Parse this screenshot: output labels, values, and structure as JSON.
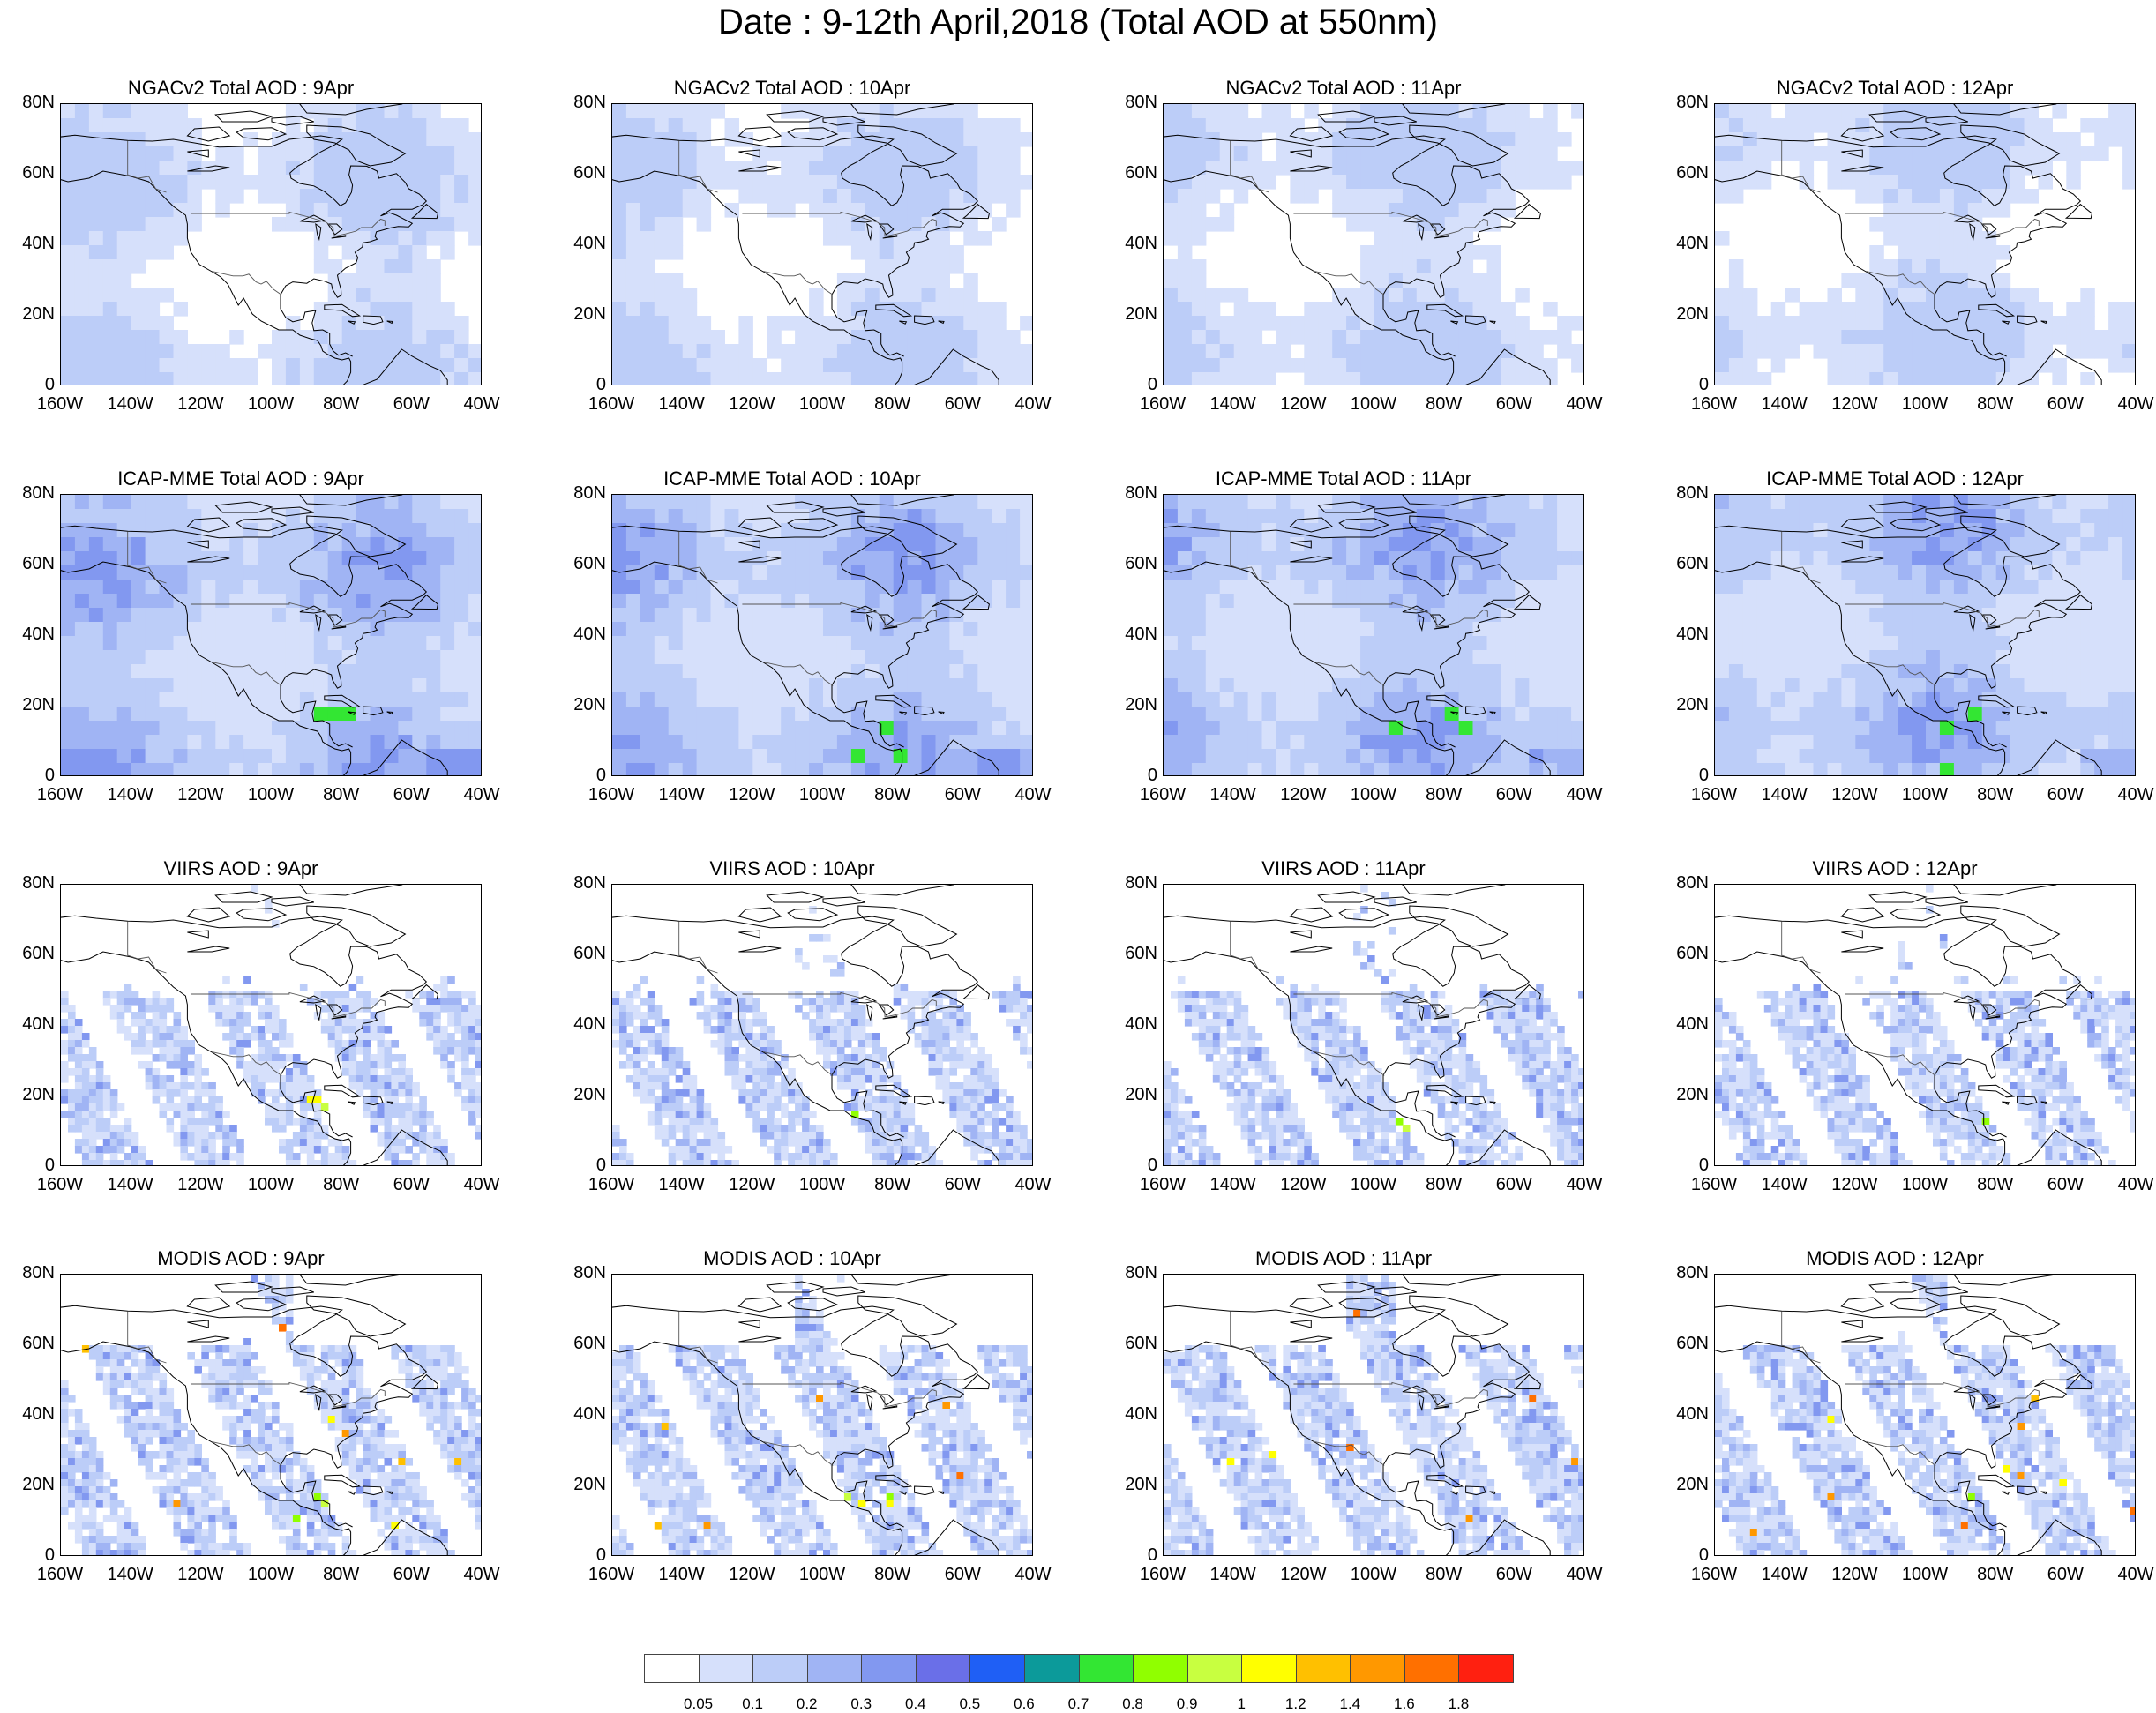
{
  "title": "Date : 9-12th April,2018 (Total AOD at 550nm)",
  "ylabels": [
    "80N",
    "60N",
    "40N",
    "20N",
    "0"
  ],
  "xlabels": [
    "160W",
    "140W",
    "120W",
    "100W",
    "80W",
    "60W",
    "40W"
  ],
  "rows": [
    {
      "kind": "model1",
      "panels": [
        "NGACv2 Total AOD : 9Apr",
        "NGACv2 Total AOD : 10Apr",
        "NGACv2 Total AOD : 11Apr",
        "NGACv2 Total AOD : 12Apr"
      ]
    },
    {
      "kind": "model2",
      "panels": [
        "ICAP-MME Total AOD : 9Apr",
        "ICAP-MME Total AOD : 10Apr",
        "ICAP-MME Total AOD : 11Apr",
        "ICAP-MME Total AOD : 12Apr"
      ]
    },
    {
      "kind": "viirs",
      "panels": [
        "VIIRS AOD : 9Apr",
        "VIIRS AOD : 10Apr",
        "VIIRS AOD : 11Apr",
        "VIIRS AOD : 12Apr"
      ]
    },
    {
      "kind": "modis",
      "panels": [
        "MODIS AOD : 9Apr",
        "MODIS AOD : 10Apr",
        "MODIS AOD : 11Apr",
        "MODIS AOD : 12Apr"
      ]
    }
  ],
  "colorbar": {
    "labels": [
      "0.05",
      "0.1",
      "0.2",
      "0.3",
      "0.4",
      "0.5",
      "0.6",
      "0.7",
      "0.8",
      "0.9",
      "1",
      "1.2",
      "1.4",
      "1.6",
      "1.8"
    ],
    "colors": [
      "#ffffff",
      "#d6e0fb",
      "#bccdf8",
      "#a0b4f4",
      "#8298f0",
      "#6a6fe8",
      "#1f5ff5",
      "#0c9a9a",
      "#33e633",
      "#90ff00",
      "#c8ff40",
      "#ffff00",
      "#ffc000",
      "#ff9800",
      "#ff7000",
      "#ff2010"
    ]
  }
}
